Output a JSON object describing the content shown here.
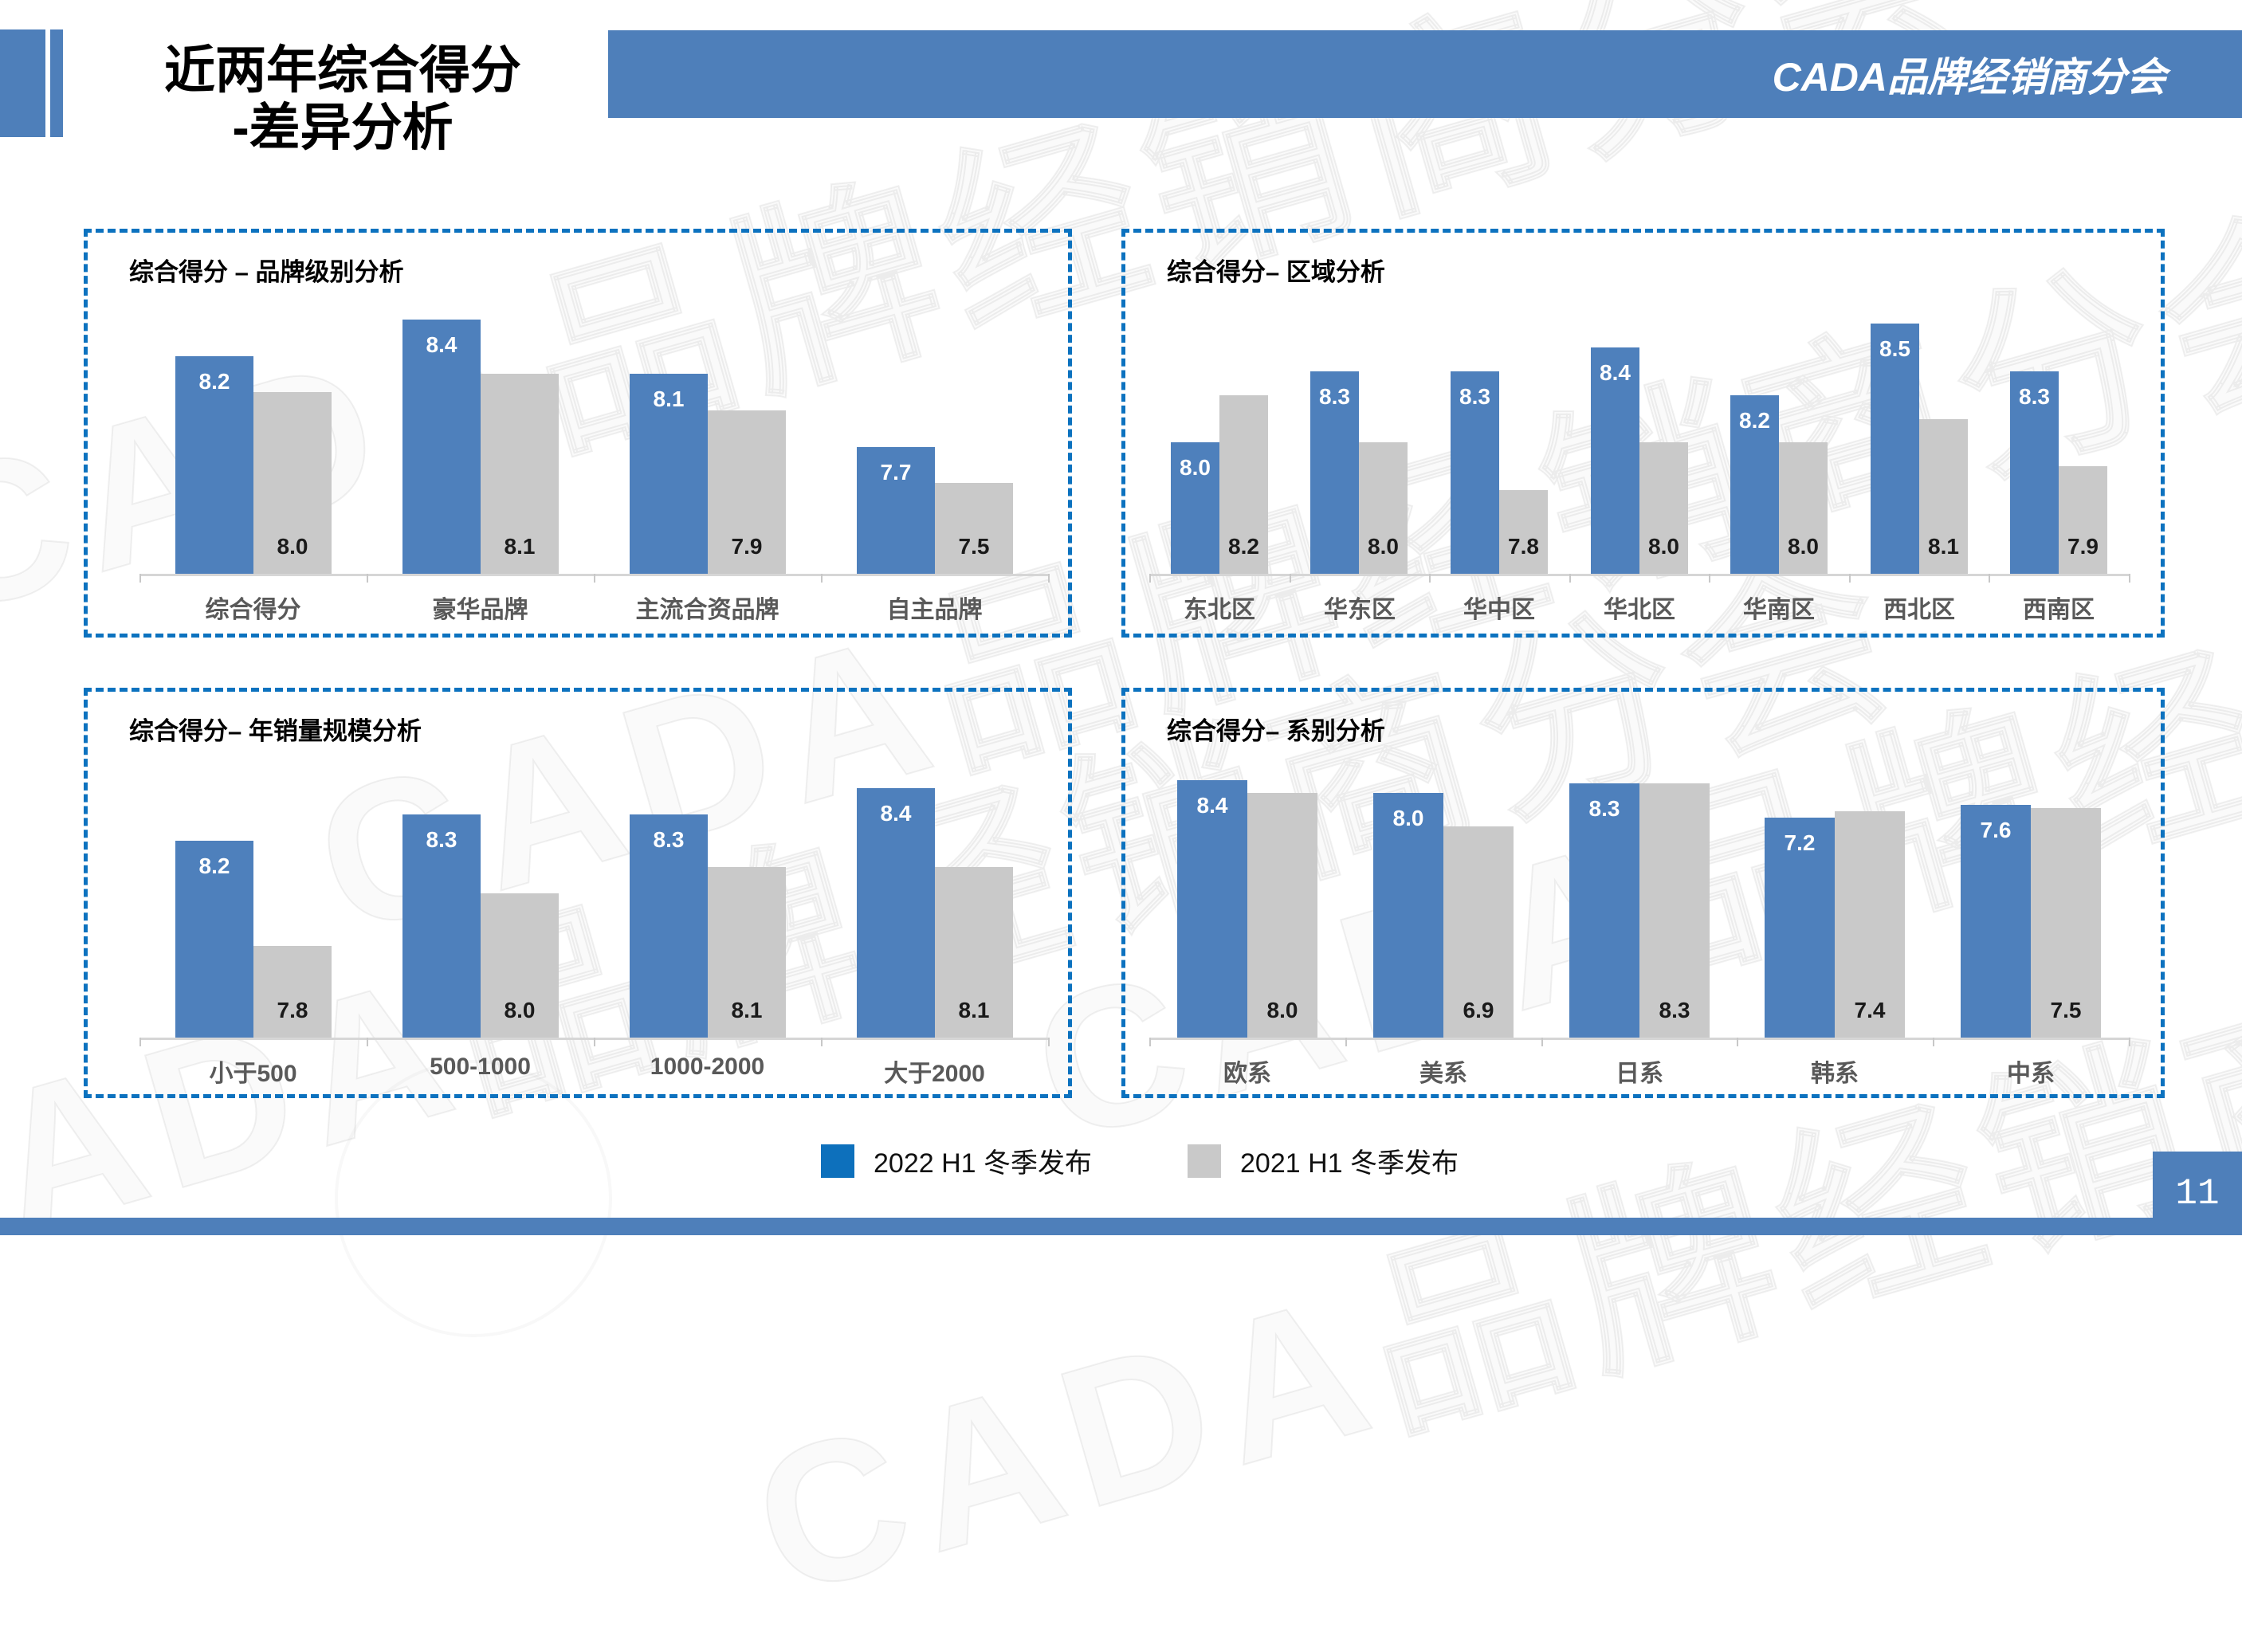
{
  "slide": {
    "title_line1": "近两年综合得分",
    "title_line2": "-差异分析",
    "header_badge": "CADA品牌经销商分会",
    "watermark": "CADA品牌经销商分会",
    "page_number": "11"
  },
  "legend": [
    {
      "label": "2022 H1 冬季发布",
      "color": "#0d70bc"
    },
    {
      "label": "2021 H1 冬季发布",
      "color": "#c9c9c9"
    }
  ],
  "colors": {
    "bar_2022": "#4e80bc",
    "bar_2021": "#c9c9c9",
    "value_label_2022": "#ffffff",
    "value_label_2021": "#1a1a1a",
    "category_label": "#595959",
    "panel_border": "#0c72bf",
    "band_blue": "#4e7fba"
  },
  "chart_data": [
    {
      "type": "bar",
      "title": "综合得分 – 品牌级别分析",
      "categories": [
        "综合得分",
        "豪华品牌",
        "主流合资品牌",
        "自主品牌"
      ],
      "series": [
        {
          "name": "2022 H1 冬季发布",
          "values": [
            8.2,
            8.4,
            8.1,
            7.7
          ]
        },
        {
          "name": "2021 H1 冬季发布",
          "values": [
            8.0,
            8.1,
            7.9,
            7.5
          ]
        }
      ],
      "ylim": [
        7.0,
        8.55
      ],
      "grid": false,
      "legend_position": "bottom-shared",
      "value_labels": true
    },
    {
      "type": "bar",
      "title": "综合得分– 区域分析",
      "categories": [
        "东北区",
        "华东区",
        "华中区",
        "华北区",
        "华南区",
        "西北区",
        "西南区"
      ],
      "series": [
        {
          "name": "2022 H1 冬季发布",
          "values": [
            8.0,
            8.3,
            8.3,
            8.4,
            8.2,
            8.5,
            8.3
          ]
        },
        {
          "name": "2021 H1 冬季发布",
          "values": [
            8.2,
            8.0,
            7.8,
            8.0,
            8.0,
            8.1,
            7.9
          ]
        }
      ],
      "ylim": [
        7.45,
        8.63
      ],
      "grid": false,
      "legend_position": "bottom-shared",
      "value_labels": true
    },
    {
      "type": "bar",
      "title": "综合得分– 年销量规模分析",
      "categories": [
        "小于500",
        "500-1000",
        "1000-2000",
        "大于2000"
      ],
      "series": [
        {
          "name": "2022 H1 冬季发布",
          "values": [
            8.2,
            8.3,
            8.3,
            8.4
          ]
        },
        {
          "name": "2021 H1 冬季发布",
          "values": [
            7.8,
            8.0,
            8.1,
            8.1
          ]
        }
      ],
      "ylim": [
        7.45,
        8.54
      ],
      "grid": false,
      "legend_position": "bottom-shared",
      "value_labels": true
    },
    {
      "type": "bar",
      "title": "综合得分– 系别分析",
      "categories": [
        "欧系",
        "美系",
        "日系",
        "韩系",
        "中系"
      ],
      "series": [
        {
          "name": "2022 H1 冬季发布",
          "values": [
            8.4,
            8.0,
            8.3,
            7.2,
            7.6
          ]
        },
        {
          "name": "2021 H1 冬季发布",
          "values": [
            8.0,
            6.9,
            8.3,
            7.4,
            7.5
          ]
        }
      ],
      "ylim": [
        0,
        9.35
      ],
      "grid": false,
      "legend_position": "bottom-shared",
      "value_labels": true
    }
  ]
}
